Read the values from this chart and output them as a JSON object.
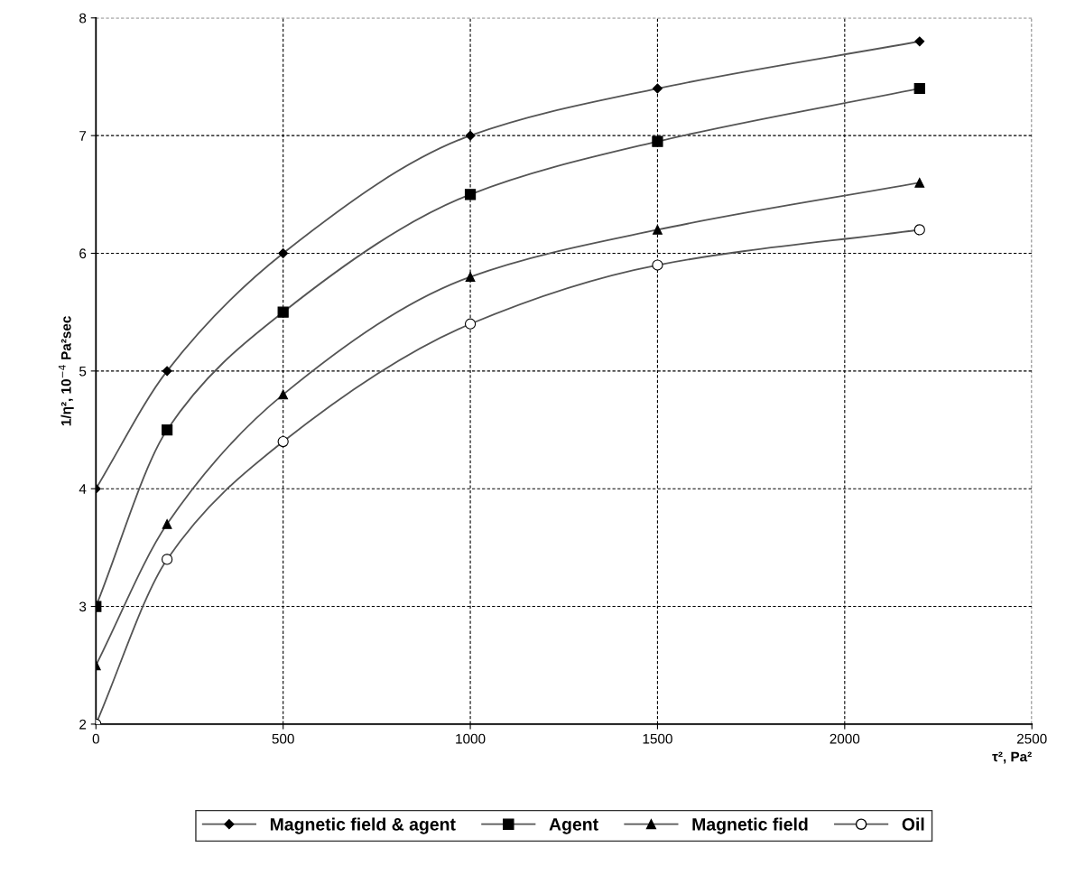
{
  "chart_data": {
    "type": "line",
    "xlabel": "τ², Pa²",
    "ylabel": "1/η², 10$^{−4}$ Pa²sec",
    "x": [
      0,
      190,
      500,
      1000,
      1500,
      2200
    ],
    "series": [
      {
        "name": "Magnetic field & agent",
        "color": "#000000",
        "marker": "diamond",
        "values": [
          4,
          5,
          6,
          7,
          7.4,
          7.8
        ]
      },
      {
        "name": "Agent",
        "color": "#000000",
        "marker": "square",
        "values": [
          3,
          4.5,
          5.5,
          6.5,
          6.95,
          7.4
        ]
      },
      {
        "name": "Magnetic field",
        "color": "#000000",
        "marker": "triangle",
        "values": [
          2.5,
          3.7,
          4.8,
          5.8,
          6.2,
          6.6
        ]
      },
      {
        "name": "Oil",
        "color": "#000000",
        "marker": "circle",
        "values": [
          2,
          3.4,
          4.4,
          5.4,
          5.9,
          6.2
        ]
      }
    ],
    "xlim": [
      0,
      2500
    ],
    "xticks": [
      0,
      500,
      1000,
      1500,
      2000,
      2500
    ],
    "ylim": [
      2,
      8
    ],
    "yticks": [
      2,
      3,
      4,
      5,
      6,
      7,
      8
    ],
    "grid": true,
    "legend": "bottom",
    "line_style": "solid"
  }
}
